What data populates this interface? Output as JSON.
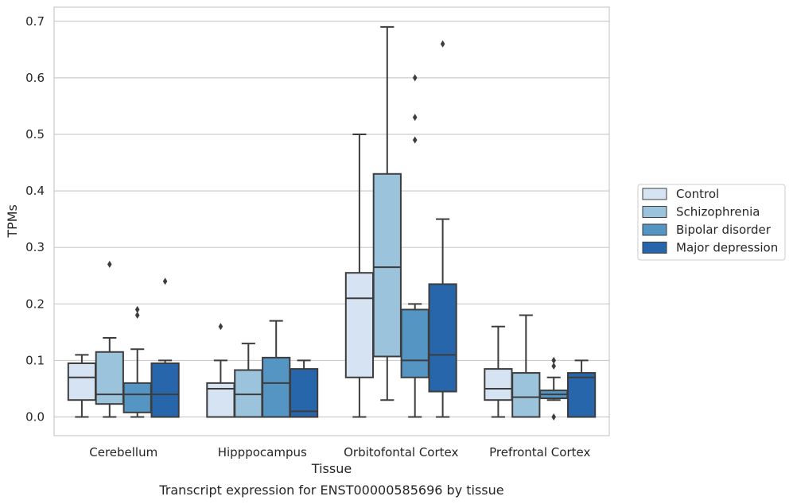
{
  "chart_data": {
    "type": "box",
    "caption": "Transcript expression for ENST00000585696 by tissue",
    "xlabel": "Tissue",
    "ylabel": "TPMs",
    "ylim": [
      -0.033,
      0.725
    ],
    "yticks": [
      0.0,
      0.1,
      0.2,
      0.3,
      0.4,
      0.5,
      0.6,
      0.7
    ],
    "ytick_labels": [
      "0.0",
      "0.1",
      "0.2",
      "0.3",
      "0.4",
      "0.5",
      "0.6",
      "0.7"
    ],
    "grid": "horizontal",
    "legend_position": "right",
    "categories": [
      "Cerebellum",
      "Hipppocampus",
      "Orbitofontal Cortex",
      "Prefrontal Cortex"
    ],
    "series": [
      {
        "name": "Control",
        "color": "#d5e3f2",
        "boxes": [
          {
            "whislo": 0.0,
            "q1": 0.03,
            "med": 0.07,
            "q3": 0.095,
            "whishi": 0.11,
            "fliers": []
          },
          {
            "whislo": 0.0,
            "q1": 0.0,
            "med": 0.05,
            "q3": 0.06,
            "whishi": 0.1,
            "fliers": [
              0.16
            ]
          },
          {
            "whislo": 0.0,
            "q1": 0.07,
            "med": 0.21,
            "q3": 0.255,
            "whishi": 0.5,
            "fliers": []
          },
          {
            "whislo": 0.0,
            "q1": 0.03,
            "med": 0.05,
            "q3": 0.085,
            "whishi": 0.16,
            "fliers": []
          }
        ]
      },
      {
        "name": "Schizophrenia",
        "color": "#9bc4dc",
        "boxes": [
          {
            "whislo": 0.0,
            "q1": 0.023,
            "med": 0.04,
            "q3": 0.115,
            "whishi": 0.14,
            "fliers": [
              0.27
            ]
          },
          {
            "whislo": 0.0,
            "q1": 0.0,
            "med": 0.04,
            "q3": 0.083,
            "whishi": 0.13,
            "fliers": []
          },
          {
            "whislo": 0.03,
            "q1": 0.107,
            "med": 0.265,
            "q3": 0.43,
            "whishi": 0.69,
            "fliers": []
          },
          {
            "whislo": 0.0,
            "q1": 0.0,
            "med": 0.035,
            "q3": 0.078,
            "whishi": 0.18,
            "fliers": []
          }
        ]
      },
      {
        "name": "Bipolar disorder",
        "color": "#5595c4",
        "boxes": [
          {
            "whislo": 0.0,
            "q1": 0.008,
            "med": 0.04,
            "q3": 0.06,
            "whishi": 0.12,
            "fliers": [
              0.19,
              0.18
            ]
          },
          {
            "whislo": 0.0,
            "q1": 0.0,
            "med": 0.06,
            "q3": 0.105,
            "whishi": 0.17,
            "fliers": []
          },
          {
            "whislo": 0.0,
            "q1": 0.07,
            "med": 0.1,
            "q3": 0.19,
            "whishi": 0.2,
            "fliers": [
              0.6,
              0.53,
              0.49
            ]
          },
          {
            "whislo": 0.03,
            "q1": 0.033,
            "med": 0.04,
            "q3": 0.047,
            "whishi": 0.07,
            "fliers": [
              0.1,
              0.09,
              0.0
            ]
          }
        ]
      },
      {
        "name": "Major depression",
        "color": "#2766ab",
        "boxes": [
          {
            "whislo": 0.0,
            "q1": 0.0,
            "med": 0.04,
            "q3": 0.095,
            "whishi": 0.1,
            "fliers": [
              0.24
            ]
          },
          {
            "whislo": 0.0,
            "q1": 0.0,
            "med": 0.01,
            "q3": 0.085,
            "whishi": 0.1,
            "fliers": []
          },
          {
            "whislo": 0.0,
            "q1": 0.045,
            "med": 0.11,
            "q3": 0.235,
            "whishi": 0.35,
            "fliers": [
              0.66
            ]
          },
          {
            "whislo": 0.0,
            "q1": 0.0,
            "med": 0.07,
            "q3": 0.078,
            "whishi": 0.1,
            "fliers": []
          }
        ]
      }
    ]
  }
}
